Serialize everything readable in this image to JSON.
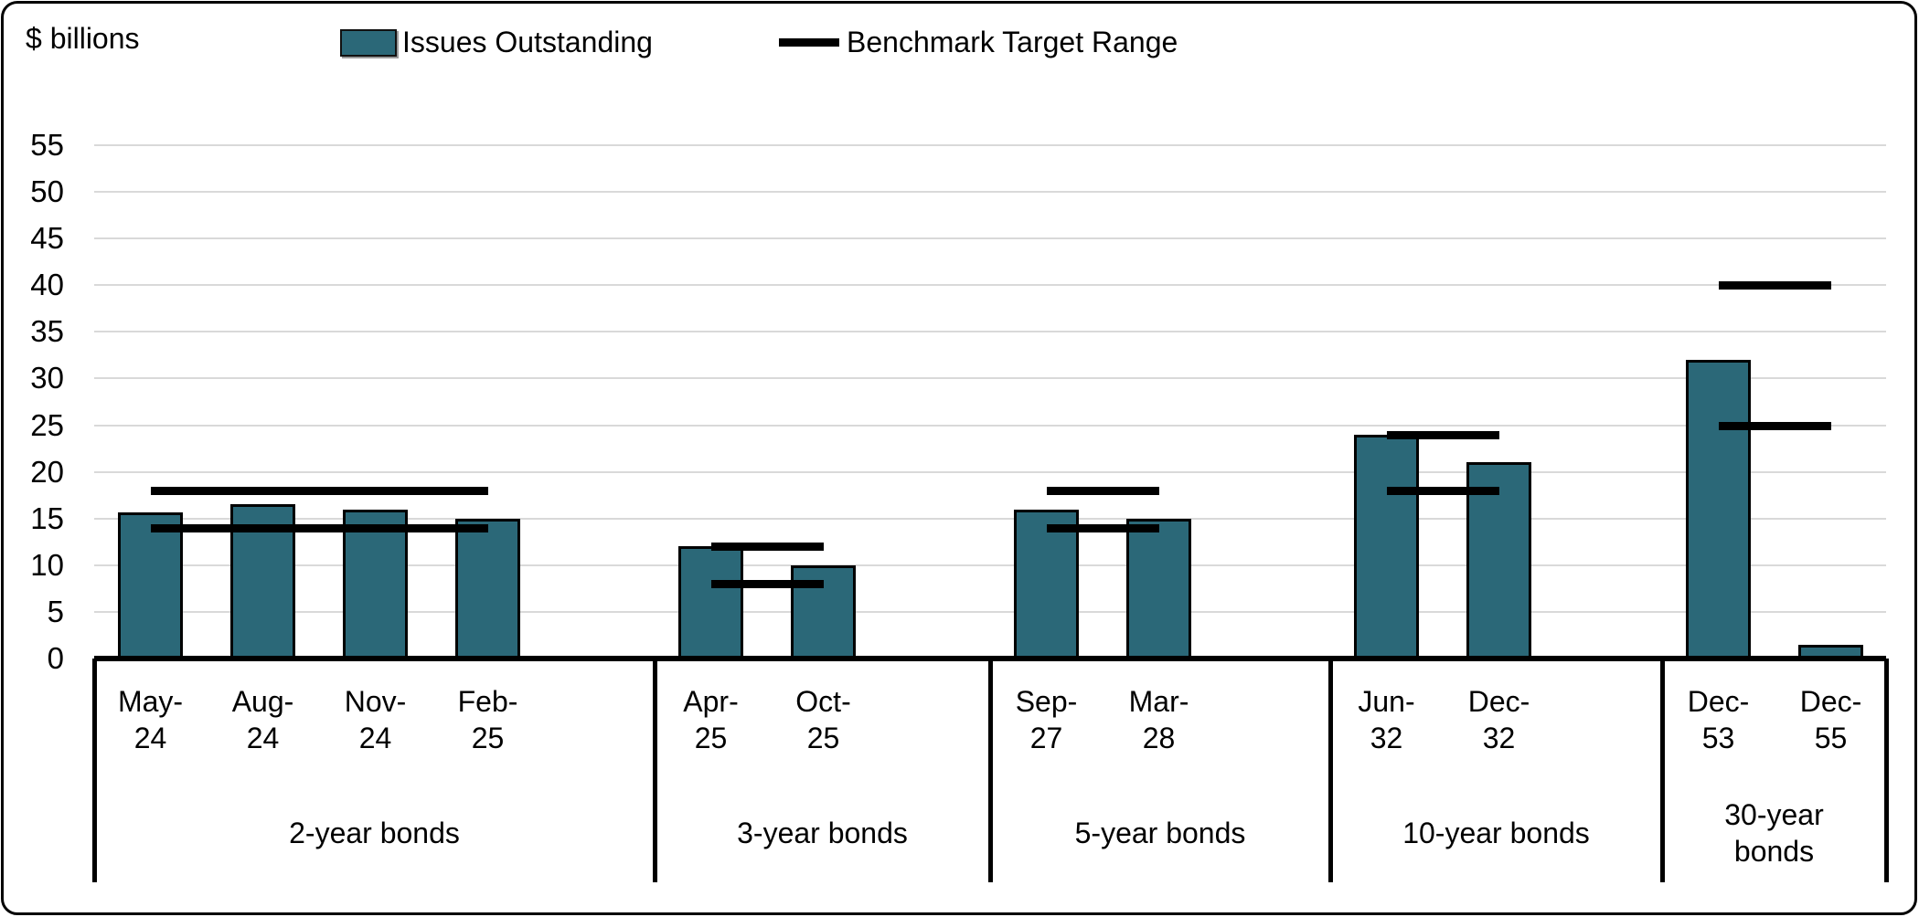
{
  "chart": {
    "y_axis_title": "$ billions",
    "legend": [
      {
        "label": "Issues Outstanding",
        "swatch": "bar-swatch"
      },
      {
        "label": "Benchmark Target Range",
        "swatch": "line-swatch"
      }
    ]
  },
  "chart_data": {
    "type": "bar",
    "title": "",
    "ylabel": "$ billions",
    "xlabel": "",
    "ylim": [
      0,
      55
    ],
    "yticks": [
      0,
      5,
      10,
      15,
      20,
      25,
      30,
      35,
      40,
      45,
      50,
      55
    ],
    "grid": "horizontal",
    "legend_position": "top",
    "series": [
      {
        "name": "Issues Outstanding",
        "style": "bar",
        "color": "#2B6878"
      },
      {
        "name": "Benchmark Target Range",
        "style": "horizontal-range-lines",
        "color": "#000000"
      }
    ],
    "groups": [
      {
        "label": "2-year bonds",
        "categories": [
          "May-24",
          "Aug-24",
          "Nov-24",
          "Feb-25"
        ],
        "issues_outstanding": [
          15.7,
          16.5,
          16,
          15
        ],
        "benchmark_target_range": [
          14,
          18
        ]
      },
      {
        "label": "3-year bonds",
        "categories": [
          "Apr-25",
          "Oct-25"
        ],
        "issues_outstanding": [
          12,
          10
        ],
        "benchmark_target_range": [
          8,
          12
        ]
      },
      {
        "label": "5-year bonds",
        "categories": [
          "Sep-27",
          "Mar-28"
        ],
        "issues_outstanding": [
          16,
          15
        ],
        "benchmark_target_range": [
          14,
          18
        ]
      },
      {
        "label": "10-year bonds",
        "categories": [
          "Jun-32",
          "Dec-32"
        ],
        "issues_outstanding": [
          24,
          21
        ],
        "benchmark_target_range": [
          18,
          24
        ]
      },
      {
        "label": "30-year bonds",
        "categories": [
          "Dec-53",
          "Dec-55"
        ],
        "issues_outstanding": [
          32,
          1.5
        ],
        "benchmark_target_range": [
          25,
          40
        ]
      }
    ],
    "colors": {
      "bar_fill": "#2B6878",
      "bar_border": "#000000",
      "benchmark_line": "#000000",
      "gridline": "#D9D9D9",
      "axis": "#000000",
      "background": "#FFFFFF"
    }
  }
}
